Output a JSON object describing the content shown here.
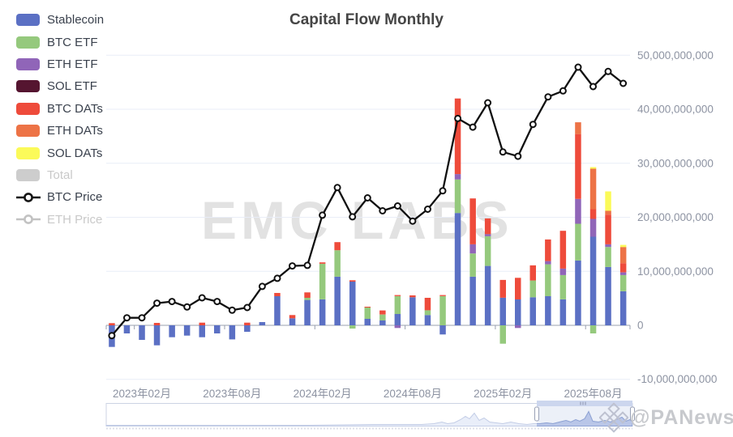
{
  "title": "Capital Flow Monthly",
  "watermarks": {
    "emc": "EMC LABS",
    "panews": "@PANews"
  },
  "legend": {
    "items": [
      {
        "label": "Stablecoin",
        "key": "stablecoin",
        "color": "#5B70C4",
        "kind": "bar",
        "disabled": false
      },
      {
        "label": "BTC ETF",
        "key": "btc_etf",
        "color": "#95C97D",
        "kind": "bar",
        "disabled": false
      },
      {
        "label": "ETH ETF",
        "key": "eth_etf",
        "color": "#9065B8",
        "kind": "bar",
        "disabled": false
      },
      {
        "label": "SOL ETF",
        "key": "sol_etf",
        "color": "#551530",
        "kind": "bar",
        "disabled": false
      },
      {
        "label": "BTC DATs",
        "key": "btc_dats",
        "color": "#EE4B3B",
        "kind": "bar",
        "disabled": false
      },
      {
        "label": "ETH DATs",
        "key": "eth_dats",
        "color": "#ED7346",
        "kind": "bar",
        "disabled": false
      },
      {
        "label": "SOL DATs",
        "key": "sol_dats",
        "color": "#FBFA59",
        "kind": "bar",
        "disabled": false
      },
      {
        "label": "Total",
        "key": "total",
        "color": "#CDCDCD",
        "kind": "bar",
        "disabled": true
      },
      {
        "label": "BTC Price",
        "key": "btc_price",
        "color": "#141414",
        "kind": "line",
        "disabled": false
      },
      {
        "label": "ETH Price",
        "key": "eth_price",
        "color": "#C2C2C2",
        "kind": "line",
        "disabled": true
      }
    ]
  },
  "chart_data": {
    "type": "stacked_bar_with_line",
    "unit": "USD (billions on right axis)",
    "months": [
      "2022-12",
      "2023-01",
      "2023-02",
      "2023-03",
      "2023-04",
      "2023-05",
      "2023-06",
      "2023-07",
      "2023-08",
      "2023-09",
      "2023-10",
      "2023-11",
      "2023-12",
      "2024-01",
      "2024-02",
      "2024-03",
      "2024-04",
      "2024-05",
      "2024-06",
      "2024-07",
      "2024-08",
      "2024-09",
      "2024-10",
      "2024-11",
      "2024-12",
      "2025-01",
      "2025-02",
      "2025-03",
      "2025-04",
      "2025-05",
      "2025-06",
      "2025-07",
      "2025-08",
      "2025-09",
      "2025-10"
    ],
    "series": [
      {
        "name": "Stablecoin",
        "key": "stablecoin",
        "values_billions": [
          -4,
          -1.5,
          -2.7,
          -3.7,
          -2.2,
          -1.9,
          -2.2,
          -1.5,
          -2.6,
          -1.2,
          0.6,
          5.4,
          1.3,
          4.7,
          4.8,
          9,
          8.1,
          1.2,
          0.9,
          2.1,
          5.2,
          1.9,
          -1.7,
          20.8,
          9,
          11,
          5.1,
          4.8,
          5.2,
          5.4,
          4.8,
          12,
          16.4,
          10.8,
          6.3
        ]
      },
      {
        "name": "BTC ETF",
        "key": "btc_etf",
        "values_billions": [
          0,
          0,
          0,
          0,
          0,
          0,
          0,
          0,
          0,
          0,
          0,
          0,
          0,
          0.4,
          6.6,
          4.9,
          -0.6,
          2.1,
          1.1,
          3.3,
          0,
          0.9,
          5.4,
          6.2,
          4.3,
          5.5,
          -3.4,
          0,
          3.1,
          5.9,
          4.5,
          6.8,
          -1.5,
          3.7,
          3
        ]
      },
      {
        "name": "ETH ETF",
        "key": "eth_etf",
        "values_billions": [
          0,
          0,
          0,
          0,
          0,
          0,
          0,
          0,
          0,
          0,
          0,
          0,
          0,
          0,
          0,
          0,
          0,
          0,
          0,
          -0.5,
          0,
          0,
          0,
          1,
          1.7,
          0.4,
          0,
          -0.5,
          0,
          0.6,
          1.2,
          4.6,
          3.3,
          0.5,
          0.5
        ]
      },
      {
        "name": "SOL ETF",
        "key": "sol_etf",
        "values_billions": [
          0,
          0,
          0,
          0,
          0,
          0,
          0,
          0,
          0,
          0,
          0,
          0,
          0,
          0,
          0,
          0,
          0,
          0,
          0,
          0,
          0,
          0,
          0,
          0,
          0,
          0,
          0,
          0,
          0,
          0,
          0,
          0,
          0,
          0,
          0
        ]
      },
      {
        "name": "BTC DATs",
        "key": "btc_dats",
        "values_billions": [
          0.4,
          0,
          0,
          0.45,
          0,
          0,
          0.5,
          0,
          0,
          0.5,
          0,
          0.6,
          0.6,
          1,
          0.25,
          1.5,
          0.25,
          0.15,
          0.75,
          0.2,
          0.35,
          2.3,
          0.2,
          14,
          8.5,
          2.9,
          3.3,
          4,
          2.8,
          4,
          7,
          12,
          1.8,
          5.5,
          1.7
        ]
      },
      {
        "name": "ETH DATs",
        "key": "eth_dats",
        "values_billions": [
          0,
          0,
          0,
          0,
          0,
          0,
          0,
          0,
          0,
          0,
          0,
          0,
          0,
          0,
          0,
          0,
          0,
          0,
          0,
          0,
          0,
          0,
          0,
          0,
          0,
          0,
          0,
          0,
          0,
          0,
          0,
          2.2,
          7.5,
          0.7,
          3
        ]
      },
      {
        "name": "SOL DATs",
        "key": "sol_dats",
        "values_billions": [
          0,
          0,
          0,
          0,
          0,
          0,
          0,
          0,
          0,
          0,
          0,
          0,
          0,
          0,
          0,
          0,
          0,
          0,
          0,
          0,
          0,
          0,
          0,
          0,
          0,
          0,
          0,
          0,
          0,
          0,
          0,
          0,
          0.3,
          3.6,
          0.4
        ]
      }
    ],
    "line_series": [
      {
        "name": "BTC Price",
        "key": "btc_price",
        "visible": true,
        "values_right_axis_billions": [
          -1.9,
          1.4,
          1.4,
          4.1,
          4.4,
          3.4,
          5.1,
          4.4,
          2.8,
          3.3,
          7.2,
          8.7,
          11,
          11.1,
          20.4,
          25.5,
          20.1,
          23.6,
          21.2,
          22.1,
          19.3,
          21.5,
          24.9,
          38.3,
          36.7,
          41.2,
          32.1,
          31.3,
          37.2,
          42.3,
          43.4,
          47.8,
          44.2,
          47,
          44.8
        ]
      },
      {
        "name": "ETH Price",
        "key": "eth_price",
        "visible": false,
        "values_right_axis_billions": []
      }
    ],
    "y_axis": {
      "position": "right",
      "tick_values_billions": [
        50,
        40,
        30,
        20,
        10,
        0,
        -10
      ],
      "labels": [
        "50,000,000,000",
        "40,000,000,000",
        "30,000,000,000",
        "20,000,000,000",
        "10,000,000,000",
        "0",
        "-10,000,000,000"
      ],
      "range_billions": [
        -10,
        50
      ],
      "grid": true
    },
    "x_axis": {
      "labels": [
        "2023年02月",
        "2023年08月",
        "2024年02月",
        "2024年08月",
        "2025年02月",
        "2025年08月"
      ],
      "label_month_indices": [
        2,
        8,
        14,
        20,
        26,
        32
      ]
    },
    "legend_position": "left",
    "navigator": {
      "selected_window_fraction": [
        0.818,
        1.0
      ],
      "grip_icon": "drag-grip",
      "shadow_profile": [
        [
          131,
          1
        ],
        [
          250,
          1
        ],
        [
          380,
          1
        ],
        [
          460,
          2
        ],
        [
          500,
          2
        ],
        [
          520,
          2
        ],
        [
          535,
          3
        ],
        [
          545,
          5
        ],
        [
          552,
          3
        ],
        [
          560,
          4
        ],
        [
          568,
          8
        ],
        [
          574,
          12
        ],
        [
          579,
          9
        ],
        [
          585,
          16
        ],
        [
          591,
          7
        ],
        [
          597,
          10
        ],
        [
          604,
          5
        ],
        [
          612,
          4
        ],
        [
          620,
          3
        ],
        [
          630,
          5
        ],
        [
          640,
          3
        ],
        [
          650,
          2
        ],
        [
          658,
          3
        ],
        [
          666,
          3
        ],
        [
          674,
          4
        ],
        [
          682,
          3
        ],
        [
          690,
          5
        ],
        [
          698,
          7
        ],
        [
          704,
          5
        ],
        [
          710,
          8
        ],
        [
          715,
          6
        ],
        [
          721,
          9
        ],
        [
          726,
          18
        ],
        [
          731,
          6
        ],
        [
          738,
          5
        ],
        [
          746,
          7
        ],
        [
          753,
          5
        ],
        [
          760,
          8
        ],
        [
          767,
          11
        ],
        [
          772,
          6
        ],
        [
          777,
          8
        ],
        [
          780,
          5
        ]
      ]
    }
  }
}
